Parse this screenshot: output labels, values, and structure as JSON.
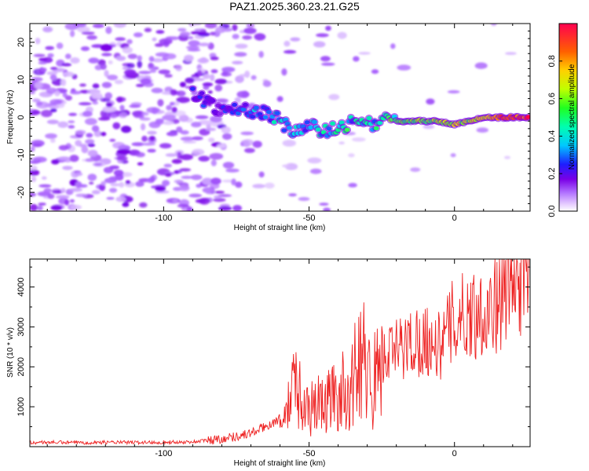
{
  "title": "PAZ1.2025.360.23.21.G25",
  "chart_data": [
    {
      "type": "heatmap",
      "xlabel": "Height of straight line (km)",
      "ylabel": "Frequency (Hz)",
      "xlim": [
        -146,
        26
      ],
      "ylim": [
        -25,
        25
      ],
      "xticks": [
        -100,
        -50,
        0
      ],
      "yticks": [
        -20,
        -10,
        0,
        10,
        20
      ],
      "colorbar": {
        "label": "Normalized spectral amplitude",
        "range": [
          0.0,
          1.0
        ],
        "ticks": [
          "0.0",
          "0.2",
          "0.4",
          "0.6",
          "0.8"
        ],
        "tick_values": [
          0.0,
          0.2,
          0.4,
          0.6,
          0.8
        ],
        "colors": [
          "#ffffff",
          "#d9b3ff",
          "#8a00ff",
          "#0000ff",
          "#00e5ff",
          "#00ff40",
          "#ffff00",
          "#ff8000",
          "#ff0040"
        ]
      },
      "signal_track": [
        {
          "x": -90,
          "y": 7,
          "amp": 0.22
        },
        {
          "x": -85,
          "y": 4,
          "amp": 0.25
        },
        {
          "x": -80,
          "y": 2,
          "amp": 0.22
        },
        {
          "x": -75,
          "y": 2,
          "amp": 0.3
        },
        {
          "x": -70,
          "y": 2,
          "amp": 0.32
        },
        {
          "x": -65,
          "y": 1,
          "amp": 0.3
        },
        {
          "x": -62,
          "y": 0,
          "amp": 0.35
        },
        {
          "x": -58,
          "y": -2,
          "amp": 0.4
        },
        {
          "x": -55,
          "y": -4,
          "amp": 0.45
        },
        {
          "x": -50,
          "y": -2,
          "amp": 0.3
        },
        {
          "x": -45,
          "y": -4,
          "amp": 0.4
        },
        {
          "x": -40,
          "y": -3,
          "amp": 0.45
        },
        {
          "x": -35,
          "y": -1,
          "amp": 0.4
        },
        {
          "x": -30,
          "y": -2,
          "amp": 0.38
        },
        {
          "x": -25,
          "y": -1,
          "amp": 0.45
        },
        {
          "x": -20,
          "y": -1,
          "amp": 0.5
        },
        {
          "x": -15,
          "y": -1,
          "amp": 0.55
        },
        {
          "x": -10,
          "y": -1,
          "amp": 0.6
        },
        {
          "x": -5,
          "y": -1,
          "amp": 0.62
        },
        {
          "x": 0,
          "y": -2,
          "amp": 0.65
        },
        {
          "x": 5,
          "y": -1,
          "amp": 0.6
        },
        {
          "x": 10,
          "y": 0,
          "amp": 0.7
        },
        {
          "x": 15,
          "y": 0,
          "amp": 0.85
        },
        {
          "x": 20,
          "y": 0,
          "amp": 0.9
        },
        {
          "x": 26,
          "y": 0,
          "amp": 0.9
        }
      ]
    },
    {
      "type": "line",
      "xlabel": "Height of straight line (km)",
      "ylabel": "SNR (10 * v/v)",
      "xlim": [
        -146,
        26
      ],
      "ylim": [
        0,
        4700
      ],
      "xticks": [
        -100,
        -50,
        0
      ],
      "yticks": [
        1000,
        2000,
        3000,
        4000
      ],
      "series": [
        {
          "name": "SNR",
          "color": "#ee2222",
          "x": [
            -146,
            -140,
            -130,
            -120,
            -110,
            -100,
            -95,
            -90,
            -85,
            -80,
            -75,
            -70,
            -65,
            -60,
            -57,
            -55,
            -53,
            -50,
            -45,
            -40,
            -35,
            -32,
            -30,
            -28,
            -25,
            -20,
            -15,
            -10,
            -5,
            0,
            5,
            10,
            15,
            20,
            26
          ],
          "y": [
            100,
            110,
            100,
            110,
            105,
            110,
            115,
            120,
            160,
            200,
            260,
            340,
            500,
            700,
            950,
            1900,
            900,
            950,
            1100,
            1300,
            1500,
            2600,
            1800,
            1600,
            2200,
            2400,
            2600,
            2700,
            2500,
            3200,
            3300,
            3400,
            3600,
            4100,
            4400
          ]
        }
      ]
    }
  ]
}
